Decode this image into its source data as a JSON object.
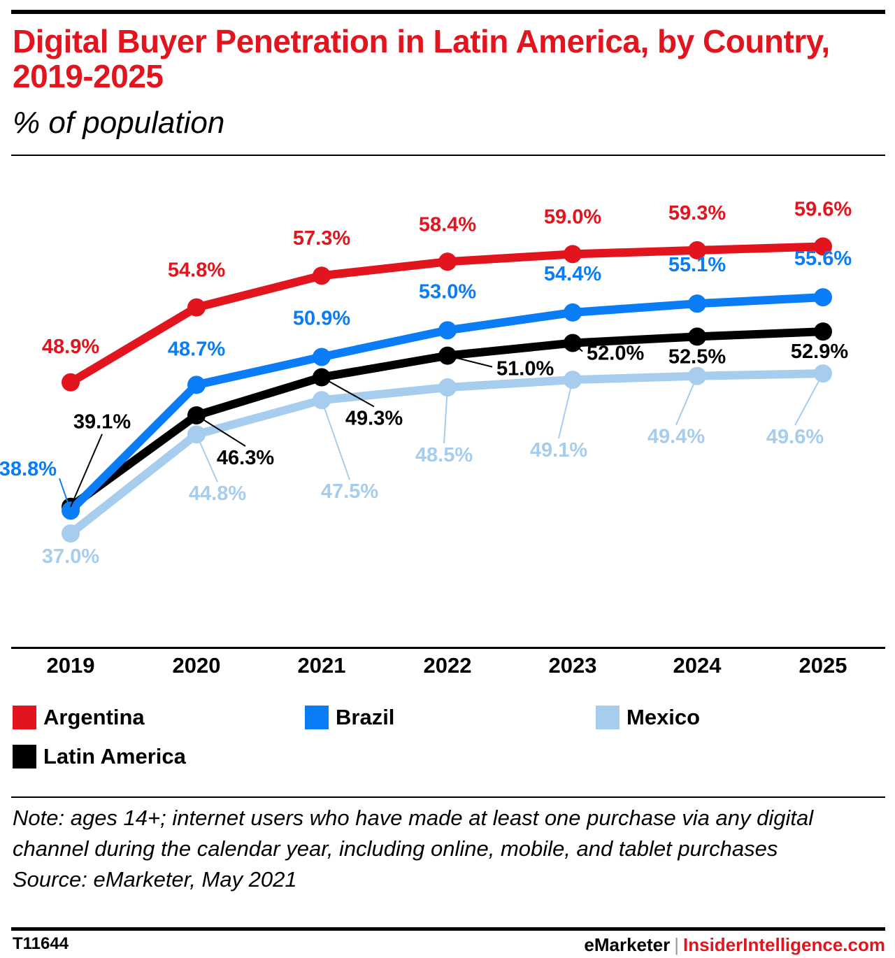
{
  "title": "Digital Buyer Penetration in Latin America, by Country, 2019-2025",
  "subtitle": "% of population",
  "chart_data": {
    "type": "line",
    "x": [
      "2019",
      "2020",
      "2021",
      "2022",
      "2023",
      "2024",
      "2025"
    ],
    "ylim": [
      25,
      65
    ],
    "grid": false,
    "legend_position": "bottom",
    "series": [
      {
        "name": "Argentina",
        "color": "#e2141d",
        "values": [
          48.9,
          54.8,
          57.3,
          58.4,
          59.0,
          59.3,
          59.6
        ],
        "labels": [
          "48.9%",
          "54.8%",
          "57.3%",
          "58.4%",
          "59.0%",
          "59.3%",
          "59.6%"
        ]
      },
      {
        "name": "Brazil",
        "color": "#0a7cf5",
        "values": [
          38.8,
          48.7,
          50.9,
          53.0,
          54.4,
          55.1,
          55.6
        ],
        "labels": [
          "38.8%",
          "48.7%",
          "50.9%",
          "53.0%",
          "54.4%",
          "55.1%",
          "55.6%"
        ]
      },
      {
        "name": "Mexico",
        "color": "#a6cdee",
        "values": [
          37.0,
          44.8,
          47.5,
          48.5,
          49.1,
          49.4,
          49.6
        ],
        "labels": [
          "37.0%",
          "44.8%",
          "47.5%",
          "48.5%",
          "49.1%",
          "49.4%",
          "49.6%"
        ]
      },
      {
        "name": "Latin America",
        "color": "#000000",
        "values": [
          39.1,
          46.3,
          49.3,
          51.0,
          52.0,
          52.5,
          52.9
        ],
        "labels": [
          "39.1%",
          "46.3%",
          "49.3%",
          "51.0%",
          "52.0%",
          "52.5%",
          "52.9%"
        ]
      }
    ]
  },
  "legend": {
    "argentina": "Argentina",
    "brazil": "Brazil",
    "mexico": "Mexico",
    "latin_america": "Latin America"
  },
  "note": "Note: ages 14+; internet users who have made at least one purchase via any digital channel during the calendar year, including online, mobile, and tablet purchases",
  "source": "Source: eMarketer, May 2021",
  "footer": {
    "id": "T11644",
    "brand_emarketer": "eMarketer",
    "separator": "|",
    "brand_insider": "InsiderIntelligence.com"
  },
  "colors": {
    "argentina": "#e2141d",
    "brazil": "#0a7cf5",
    "mexico": "#a6cdee",
    "latin_america": "#000000"
  }
}
